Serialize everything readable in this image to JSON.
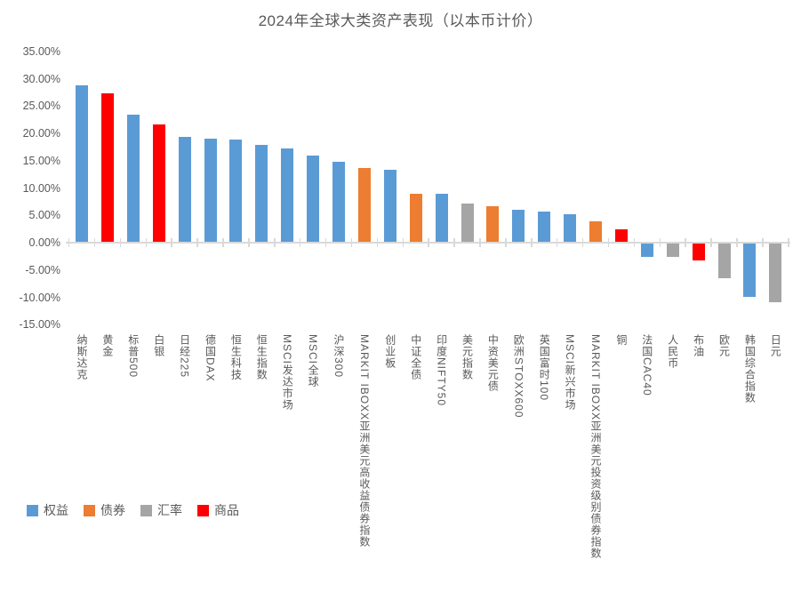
{
  "title": "2024年全球大类资产表现（以本币计价）",
  "colors": {
    "equity": "#5B9BD5",
    "bond": "#ED7D31",
    "fx": "#A5A5A5",
    "commodity": "#FF0000",
    "axis_line": "#D9D9D9",
    "text": "#595959"
  },
  "legend": [
    {
      "key": "equity",
      "label": "权益"
    },
    {
      "key": "bond",
      "label": "债券"
    },
    {
      "key": "fx",
      "label": "汇率"
    },
    {
      "key": "commodity",
      "label": "商品"
    }
  ],
  "chart_data": {
    "type": "bar",
    "title": "2024年全球大类资产表现（以本币计价）",
    "xlabel": "",
    "ylabel": "",
    "unit": "percent",
    "ylim": [
      -15,
      35
    ],
    "grid": false,
    "legend_position": "bottom-left",
    "ytick_labels": [
      "35.00%",
      "30.00%",
      "25.00%",
      "20.00%",
      "15.00%",
      "10.00%",
      "5.00%",
      "0.00%",
      "-5.00%",
      "-10.00%",
      "-15.00%"
    ],
    "ytick_values": [
      35,
      30,
      25,
      20,
      15,
      10,
      5,
      0,
      -5,
      -10,
      -15
    ],
    "categories": [
      "纳斯达克",
      "黄金",
      "标普500",
      "白银",
      "日经225",
      "德国DAX",
      "恒生科技",
      "恒生指数",
      "MSCI发达市场",
      "MSCI全球",
      "沪深300",
      "MARKIT IBOXX亚洲美元高收益债券指数",
      "创业板",
      "中证全债",
      "印度NIFTY50",
      "美元指数",
      "中资美元债",
      "欧洲STOXX600",
      "英国富时100",
      "MSCI新兴市场",
      "MARKIT IBOXX亚洲美元投资级别债券指数",
      "铜",
      "法国CAC40",
      "人民币",
      "布油",
      "欧元",
      "韩国综合指数",
      "日元"
    ],
    "values": [
      28.6,
      27.2,
      23.3,
      21.5,
      19.2,
      18.9,
      18.7,
      17.7,
      17.0,
      15.7,
      14.7,
      13.5,
      13.2,
      8.8,
      8.7,
      7.0,
      6.5,
      5.9,
      5.6,
      5.0,
      3.8,
      2.3,
      -2.4,
      -2.5,
      -3.1,
      -6.4,
      -9.7,
      -10.7
    ],
    "classes": [
      "equity",
      "commodity",
      "equity",
      "commodity",
      "equity",
      "equity",
      "equity",
      "equity",
      "equity",
      "equity",
      "equity",
      "bond",
      "equity",
      "bond",
      "equity",
      "fx",
      "bond",
      "equity",
      "equity",
      "equity",
      "bond",
      "commodity",
      "equity",
      "fx",
      "commodity",
      "fx",
      "equity",
      "fx"
    ]
  }
}
